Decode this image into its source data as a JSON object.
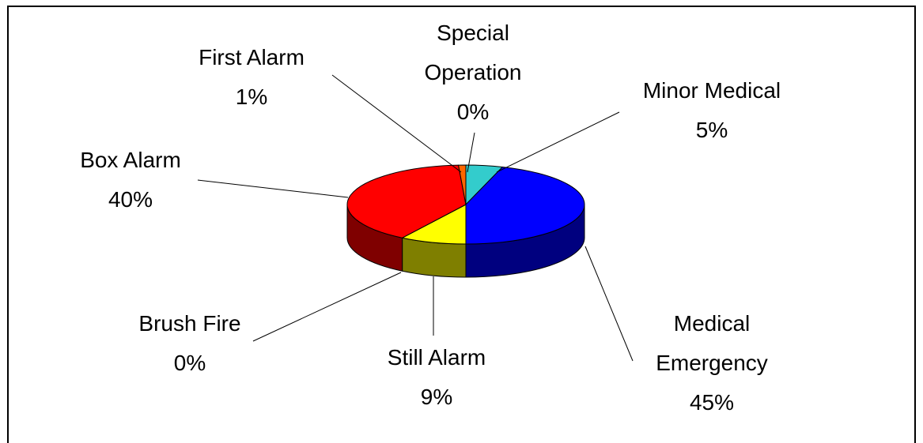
{
  "chart_data": {
    "type": "pie3d",
    "categories": [
      "Minor Medical",
      "Medical Emergency",
      "Still Alarm",
      "Brush Fire",
      "Box Alarm",
      "First Alarm",
      "Special Operation"
    ],
    "values": [
      5,
      45,
      9,
      0,
      40,
      1,
      0
    ],
    "value_labels": [
      "5%",
      "45%",
      "9%",
      "0%",
      "40%",
      "1%",
      "0%"
    ],
    "colors": [
      "#33CCCC",
      "#0000FF",
      "#FFFF00",
      "#993366",
      "#FF0000",
      "#FF6600",
      "#3366FF"
    ]
  }
}
